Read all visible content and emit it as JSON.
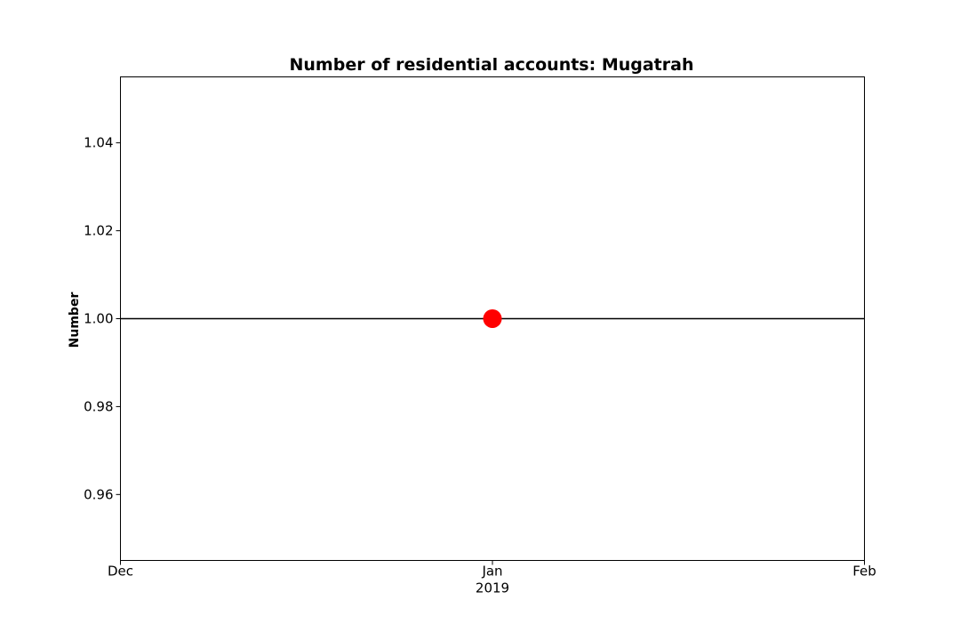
{
  "chart_data": {
    "type": "line",
    "title": "Number of residential accounts: Mugatrah",
    "xlabel": "",
    "ylabel": "Number",
    "x_ticks": [
      {
        "date": "2018-12-01",
        "label": "Dec",
        "sublabel": ""
      },
      {
        "date": "2019-01-01",
        "label": "Jan",
        "sublabel": "2019"
      },
      {
        "date": "2019-02-01",
        "label": "Feb",
        "sublabel": ""
      }
    ],
    "xlim": [
      "2018-12-01",
      "2019-02-01"
    ],
    "y_ticks": [
      0.96,
      0.98,
      1.0,
      1.02,
      1.04
    ],
    "ylim": [
      0.945,
      1.055
    ],
    "series": [
      {
        "type": "line",
        "x": [
          "2018-12-01",
          "2019-02-01"
        ],
        "y": [
          1.0,
          1.0
        ],
        "color": "#000000"
      },
      {
        "type": "scatter",
        "x": [
          "2019-01-01"
        ],
        "y": [
          1.0
        ],
        "color": "#ff0000"
      }
    ],
    "grid": false,
    "legend": false
  }
}
